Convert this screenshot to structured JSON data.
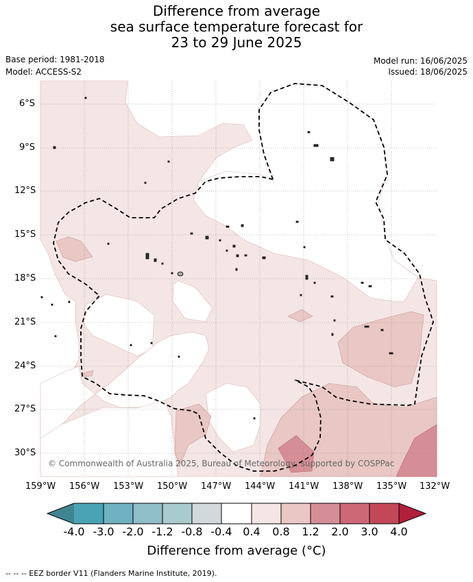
{
  "title": {
    "line1": "Difference from average",
    "line2": "sea surface temperature forecast for",
    "line3": "23 to 29 June 2025"
  },
  "meta": {
    "base_period": "Base period: 1981-2018",
    "model": "Model: ACCESS-S2",
    "model_run": "Model run: 16/06/2025",
    "issued": "Issued: 18/06/2025"
  },
  "map": {
    "lat_labels": [
      "6°S",
      "9°S",
      "12°S",
      "15°S",
      "18°S",
      "21°S",
      "24°S",
      "27°S",
      "30°S"
    ],
    "lon_labels": [
      "159°W",
      "156°W",
      "153°W",
      "150°W",
      "147°W",
      "144°W",
      "141°W",
      "138°W",
      "135°W",
      "132°W"
    ],
    "credit": "© Commonwealth of Australia 2025, Bureau of Meteorology, supported by COSPPac"
  },
  "colorbar": {
    "colors": [
      "#3e8591",
      "#4aa3b4",
      "#6fb1c0",
      "#8fbdc8",
      "#a9cacf",
      "#d3d9da",
      "#ffffff",
      "#f4e6e5",
      "#e8c7c4",
      "#d68e96",
      "#cd6876",
      "#c24857",
      "#b11f3b"
    ],
    "ticks": [
      "-4.0",
      "-3.0",
      "-2.0",
      "-1.2",
      "-0.8",
      "-0.4",
      "0.4",
      "0.8",
      "1.2",
      "2.0",
      "3.0",
      "4.0"
    ],
    "title": "Difference from average (°C)"
  },
  "footer": "--  --  -- EEZ border V11 (Flanders Marine Institute, 2019)."
}
